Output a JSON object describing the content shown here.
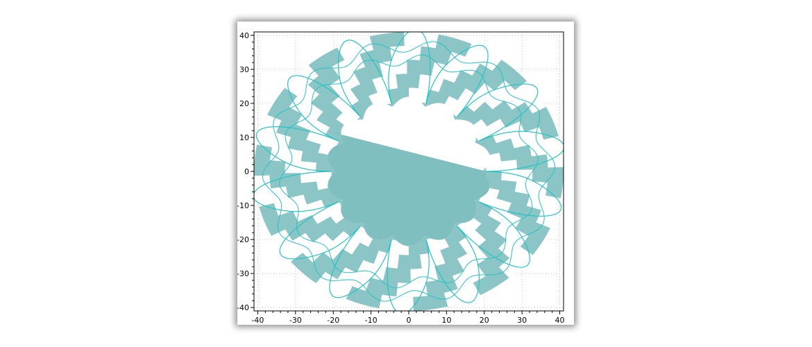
{
  "chart_data": {
    "type": "area",
    "title": "",
    "xlabel": "",
    "ylabel": "",
    "xlim": [
      -41,
      41
    ],
    "ylim": [
      -41,
      41
    ],
    "grid": true,
    "x_ticks": [
      "-40",
      "-30",
      "-20",
      "-10",
      "0",
      "10",
      "20",
      "30",
      "40"
    ],
    "y_ticks": [
      "40",
      "30",
      "20",
      "10",
      "0",
      "-10",
      "-20",
      "-30",
      "-40"
    ],
    "series": [
      {
        "curve": "epicycloid-ring",
        "outer_radius": 41,
        "inner_radius": 20.5,
        "petals": 14,
        "turns": 1,
        "x_start": 20.6,
        "y_start": 0,
        "x_end": -20.6,
        "y_end": 11.6,
        "fill": "#7fbfbf",
        "line": "#24c4c4"
      }
    ],
    "colors": {
      "fill": "#7fbfbf",
      "line": "#24c4c4",
      "grid": "#c8c8c8",
      "axis": "#000000"
    }
  }
}
